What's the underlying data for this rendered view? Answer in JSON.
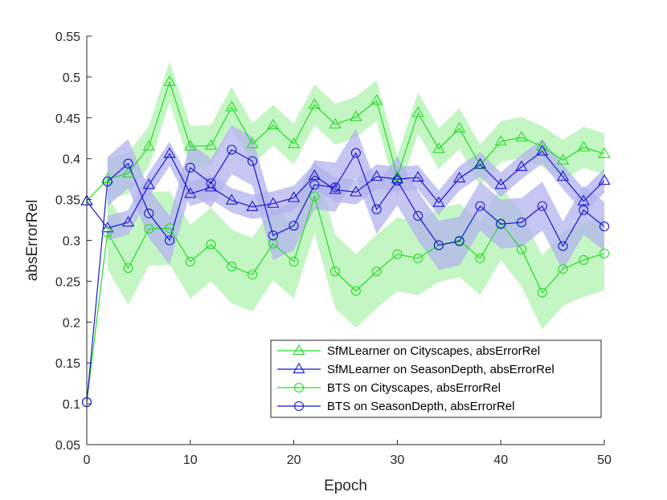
{
  "chart_data": {
    "type": "line",
    "xlabel": "Epoch",
    "ylabel": "absErrorRel",
    "xlim": [
      0,
      50
    ],
    "ylim": [
      0.05,
      0.55
    ],
    "xticks": [
      0,
      10,
      20,
      30,
      40,
      50
    ],
    "xtick_labels": [
      "0",
      "10",
      "20",
      "30",
      "40",
      "50"
    ],
    "yticks": [
      0.05,
      0.1,
      0.15,
      0.2,
      0.25,
      0.3,
      0.35,
      0.4,
      0.45,
      0.5,
      0.55
    ],
    "ytick_labels": [
      "0.05",
      "0.1",
      "0.15",
      "0.2",
      "0.25",
      "0.3",
      "0.35",
      "0.4",
      "0.45",
      "0.5",
      "0.55"
    ],
    "legend_position": "bottom-right",
    "colors": {
      "green_line": "#22dd22",
      "green_band": "#b8f5b8",
      "blue_line": "#1515d6",
      "blue_band": "#b3b3ee"
    },
    "band_width": {
      "sfm_cityscapes": 0.025,
      "sfm_seasondepth": 0.015,
      "bts_cityscapes": 0.045,
      "bts_seasondepth": 0.03
    },
    "series": [
      {
        "name": "SfMLearner on Cityscapes, absErrorRel",
        "color": "green",
        "marker": "triangle",
        "x": [
          0,
          2,
          4,
          6,
          8,
          10,
          12,
          14,
          16,
          18,
          20,
          22,
          24,
          26,
          28,
          30,
          32,
          34,
          36,
          38,
          40,
          42,
          44,
          46,
          48,
          50
        ],
        "y": [
          0.348,
          0.375,
          0.382,
          0.415,
          0.494,
          0.415,
          0.416,
          0.463,
          0.418,
          0.441,
          0.418,
          0.466,
          0.442,
          0.451,
          0.471,
          0.378,
          0.456,
          0.412,
          0.437,
          0.392,
          0.421,
          0.426,
          0.415,
          0.398,
          0.414,
          0.406
        ]
      },
      {
        "name": "SfMLearner on SeasonDepth, absErrorRel",
        "color": "blue",
        "marker": "triangle",
        "x": [
          0,
          2,
          4,
          6,
          8,
          10,
          12,
          14,
          16,
          18,
          20,
          22,
          24,
          26,
          28,
          30,
          32,
          34,
          36,
          38,
          40,
          42,
          44,
          46,
          48,
          50
        ],
        "y": [
          0.348,
          0.315,
          0.322,
          0.368,
          0.406,
          0.357,
          0.365,
          0.349,
          0.341,
          0.345,
          0.352,
          0.379,
          0.362,
          0.359,
          0.378,
          0.375,
          0.377,
          0.346,
          0.376,
          0.393,
          0.368,
          0.39,
          0.409,
          0.378,
          0.348,
          0.373
        ]
      },
      {
        "name": "BTS on Cityscapes, absErrorRel",
        "color": "green",
        "marker": "circle",
        "x": [
          0,
          2,
          4,
          6,
          8,
          10,
          12,
          14,
          16,
          18,
          20,
          22,
          24,
          26,
          28,
          30,
          32,
          34,
          36,
          38,
          40,
          42,
          44,
          46,
          48,
          50
        ],
        "y": [
          0.102,
          0.31,
          0.266,
          0.314,
          0.315,
          0.274,
          0.295,
          0.268,
          0.258,
          0.296,
          0.274,
          0.354,
          0.262,
          0.238,
          0.262,
          0.283,
          0.278,
          0.294,
          0.3,
          0.278,
          0.321,
          0.289,
          0.236,
          0.265,
          0.276,
          0.284
        ]
      },
      {
        "name": "BTS on SeasonDepth, absErrorRel",
        "color": "blue",
        "marker": "circle",
        "x": [
          0,
          2,
          4,
          6,
          8,
          10,
          12,
          14,
          16,
          18,
          20,
          22,
          24,
          26,
          28,
          30,
          32,
          34,
          36,
          38,
          40,
          42,
          44,
          46,
          48,
          50
        ],
        "y": [
          0.102,
          0.372,
          0.394,
          0.333,
          0.3,
          0.389,
          0.37,
          0.411,
          0.397,
          0.306,
          0.318,
          0.368,
          0.365,
          0.407,
          0.338,
          0.373,
          0.33,
          0.294,
          0.299,
          0.342,
          0.32,
          0.322,
          0.342,
          0.293,
          0.337,
          0.317
        ]
      }
    ]
  }
}
